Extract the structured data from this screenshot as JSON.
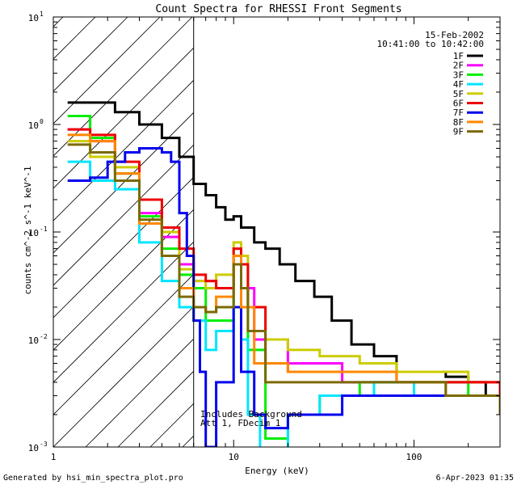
{
  "chart_data": {
    "type": "line",
    "title": "Count Spectra for RHESSI Front Segments",
    "xlabel": "Energy (keV)",
    "ylabel": "counts cm^-2 s^-1 keV^-1",
    "xscale": "log",
    "yscale": "log",
    "xlim": [
      1,
      300
    ],
    "ylim": [
      0.001,
      10
    ],
    "x_ticks": [
      {
        "value": 1,
        "label": "1"
      },
      {
        "value": 10,
        "label": "10"
      },
      {
        "value": 100,
        "label": "100"
      }
    ],
    "y_ticks": [
      {
        "value": 10,
        "base": "10",
        "exp": "1"
      },
      {
        "value": 1,
        "base": "10",
        "exp": "0"
      },
      {
        "value": 0.1,
        "base": "10",
        "exp": "-1"
      },
      {
        "value": 0.01,
        "base": "10",
        "exp": "-2"
      },
      {
        "value": 0.001,
        "base": "10",
        "exp": "-3"
      }
    ],
    "hatched_region_keV": [
      1,
      6
    ],
    "boundary_line_keV": 6,
    "date": "15-Feb-2002",
    "time_range": "10:41:00 to 10:42:00",
    "annotations": [
      "Includes Background",
      "Att 1, FDecim 1"
    ],
    "series": [
      {
        "name": "1F",
        "color": "#000000",
        "points": [
          [
            1.2,
            1.6
          ],
          [
            1.6,
            1.6
          ],
          [
            2.2,
            1.3
          ],
          [
            3,
            1.0
          ],
          [
            4,
            0.75
          ],
          [
            5,
            0.5
          ],
          [
            6,
            0.28
          ],
          [
            7,
            0.22
          ],
          [
            8,
            0.17
          ],
          [
            9,
            0.13
          ],
          [
            10,
            0.14
          ],
          [
            11,
            0.11
          ],
          [
            13,
            0.08
          ],
          [
            15,
            0.07
          ],
          [
            18,
            0.05
          ],
          [
            22,
            0.035
          ],
          [
            28,
            0.025
          ],
          [
            35,
            0.015
          ],
          [
            45,
            0.009
          ],
          [
            60,
            0.007
          ],
          [
            80,
            0.005
          ],
          [
            100,
            0.005
          ],
          [
            150,
            0.0045
          ],
          [
            200,
            0.004
          ],
          [
            250,
            0.003
          ],
          [
            300,
            0.0025
          ]
        ]
      },
      {
        "name": "2F",
        "color": "#ff00ff",
        "points": [
          [
            1.2,
            0.9
          ],
          [
            1.6,
            0.7
          ],
          [
            2.2,
            0.35
          ],
          [
            3,
            0.15
          ],
          [
            4,
            0.09
          ],
          [
            5,
            0.05
          ],
          [
            6,
            0.035
          ],
          [
            8,
            0.03
          ],
          [
            10,
            0.05
          ],
          [
            11,
            0.03
          ],
          [
            13,
            0.01
          ],
          [
            20,
            0.006
          ],
          [
            40,
            0.004
          ],
          [
            80,
            0.004
          ],
          [
            150,
            0.004
          ],
          [
            300,
            0.003
          ]
        ]
      },
      {
        "name": "3F",
        "color": "#00ee00",
        "points": [
          [
            1.2,
            1.2
          ],
          [
            1.6,
            0.75
          ],
          [
            2.2,
            0.35
          ],
          [
            3,
            0.14
          ],
          [
            4,
            0.07
          ],
          [
            5,
            0.04
          ],
          [
            6,
            0.03
          ],
          [
            7,
            0.015
          ],
          [
            8,
            0.015
          ],
          [
            10,
            0.05
          ],
          [
            11,
            0.03
          ],
          [
            12,
            0.008
          ],
          [
            15,
            0.0012
          ],
          [
            20,
            0.002
          ],
          [
            30,
            0.003
          ],
          [
            50,
            0.004
          ],
          [
            100,
            0.004
          ],
          [
            200,
            0.003
          ],
          [
            300,
            0.002
          ]
        ]
      },
      {
        "name": "4F",
        "color": "#00e5ff",
        "points": [
          [
            1.2,
            0.45
          ],
          [
            1.6,
            0.3
          ],
          [
            2.2,
            0.25
          ],
          [
            3,
            0.08
          ],
          [
            4,
            0.035
          ],
          [
            5,
            0.02
          ],
          [
            6,
            0.015
          ],
          [
            7,
            0.008
          ],
          [
            8,
            0.012
          ],
          [
            10,
            0.05
          ],
          [
            11,
            0.01
          ],
          [
            12,
            0.002
          ],
          [
            14,
            0.0008
          ],
          [
            20,
            0.002
          ],
          [
            30,
            0.003
          ],
          [
            60,
            0.004
          ],
          [
            100,
            0.003
          ],
          [
            200,
            0.003
          ],
          [
            300,
            0.002
          ]
        ]
      },
      {
        "name": "5F",
        "color": "#cccc00",
        "points": [
          [
            1.2,
            0.7
          ],
          [
            1.6,
            0.5
          ],
          [
            2.2,
            0.4
          ],
          [
            3,
            0.2
          ],
          [
            4,
            0.1
          ],
          [
            5,
            0.045
          ],
          [
            6,
            0.035
          ],
          [
            7,
            0.03
          ],
          [
            8,
            0.04
          ],
          [
            10,
            0.08
          ],
          [
            11,
            0.06
          ],
          [
            12,
            0.02
          ],
          [
            15,
            0.01
          ],
          [
            20,
            0.008
          ],
          [
            30,
            0.007
          ],
          [
            50,
            0.006
          ],
          [
            80,
            0.005
          ],
          [
            120,
            0.005
          ],
          [
            200,
            0.004
          ],
          [
            300,
            0.003
          ]
        ]
      },
      {
        "name": "6F",
        "color": "#ee0000",
        "points": [
          [
            1.2,
            0.9
          ],
          [
            1.6,
            0.8
          ],
          [
            2.2,
            0.45
          ],
          [
            3,
            0.2
          ],
          [
            4,
            0.11
          ],
          [
            5,
            0.07
          ],
          [
            6,
            0.04
          ],
          [
            7,
            0.035
          ],
          [
            8,
            0.03
          ],
          [
            10,
            0.07
          ],
          [
            11,
            0.05
          ],
          [
            12,
            0.02
          ],
          [
            15,
            0.006
          ],
          [
            20,
            0.005
          ],
          [
            40,
            0.005
          ],
          [
            80,
            0.004
          ],
          [
            150,
            0.004
          ],
          [
            300,
            0.003
          ]
        ]
      },
      {
        "name": "7F",
        "color": "#0000ee",
        "points": [
          [
            1.2,
            0.3
          ],
          [
            1.6,
            0.32
          ],
          [
            2,
            0.45
          ],
          [
            2.5,
            0.55
          ],
          [
            3,
            0.6
          ],
          [
            4,
            0.55
          ],
          [
            4.5,
            0.45
          ],
          [
            5,
            0.15
          ],
          [
            5.5,
            0.06
          ],
          [
            6,
            0.015
          ],
          [
            6.5,
            0.005
          ],
          [
            7,
            0.001
          ],
          [
            8,
            0.004
          ],
          [
            10,
            0.02
          ],
          [
            11,
            0.005
          ],
          [
            13,
            0.002
          ],
          [
            15,
            0.0015
          ],
          [
            20,
            0.002
          ],
          [
            40,
            0.003
          ],
          [
            80,
            0.003
          ],
          [
            150,
            0.003
          ],
          [
            300,
            0.002
          ]
        ]
      },
      {
        "name": "8F",
        "color": "#ff8800",
        "points": [
          [
            1.2,
            0.8
          ],
          [
            1.6,
            0.7
          ],
          [
            2.2,
            0.35
          ],
          [
            3,
            0.12
          ],
          [
            4,
            0.06
          ],
          [
            5,
            0.03
          ],
          [
            6,
            0.02
          ],
          [
            7,
            0.018
          ],
          [
            8,
            0.025
          ],
          [
            10,
            0.06
          ],
          [
            11,
            0.02
          ],
          [
            13,
            0.006
          ],
          [
            20,
            0.005
          ],
          [
            40,
            0.005
          ],
          [
            80,
            0.004
          ],
          [
            150,
            0.003
          ],
          [
            300,
            0.002
          ]
        ]
      },
      {
        "name": "9F",
        "color": "#7a6a00",
        "points": [
          [
            1.2,
            0.65
          ],
          [
            1.6,
            0.55
          ],
          [
            2.2,
            0.3
          ],
          [
            3,
            0.13
          ],
          [
            4,
            0.06
          ],
          [
            5,
            0.025
          ],
          [
            6,
            0.02
          ],
          [
            7,
            0.018
          ],
          [
            8,
            0.02
          ],
          [
            10,
            0.05
          ],
          [
            11,
            0.03
          ],
          [
            12,
            0.012
          ],
          [
            15,
            0.004
          ],
          [
            20,
            0.004
          ],
          [
            40,
            0.004
          ],
          [
            80,
            0.004
          ],
          [
            150,
            0.003
          ],
          [
            300,
            0.002
          ]
        ]
      }
    ]
  },
  "footer": {
    "generated_by": "Generated by hsi_min_spectra_plot.pro",
    "timestamp": "6-Apr-2023 01:35"
  }
}
